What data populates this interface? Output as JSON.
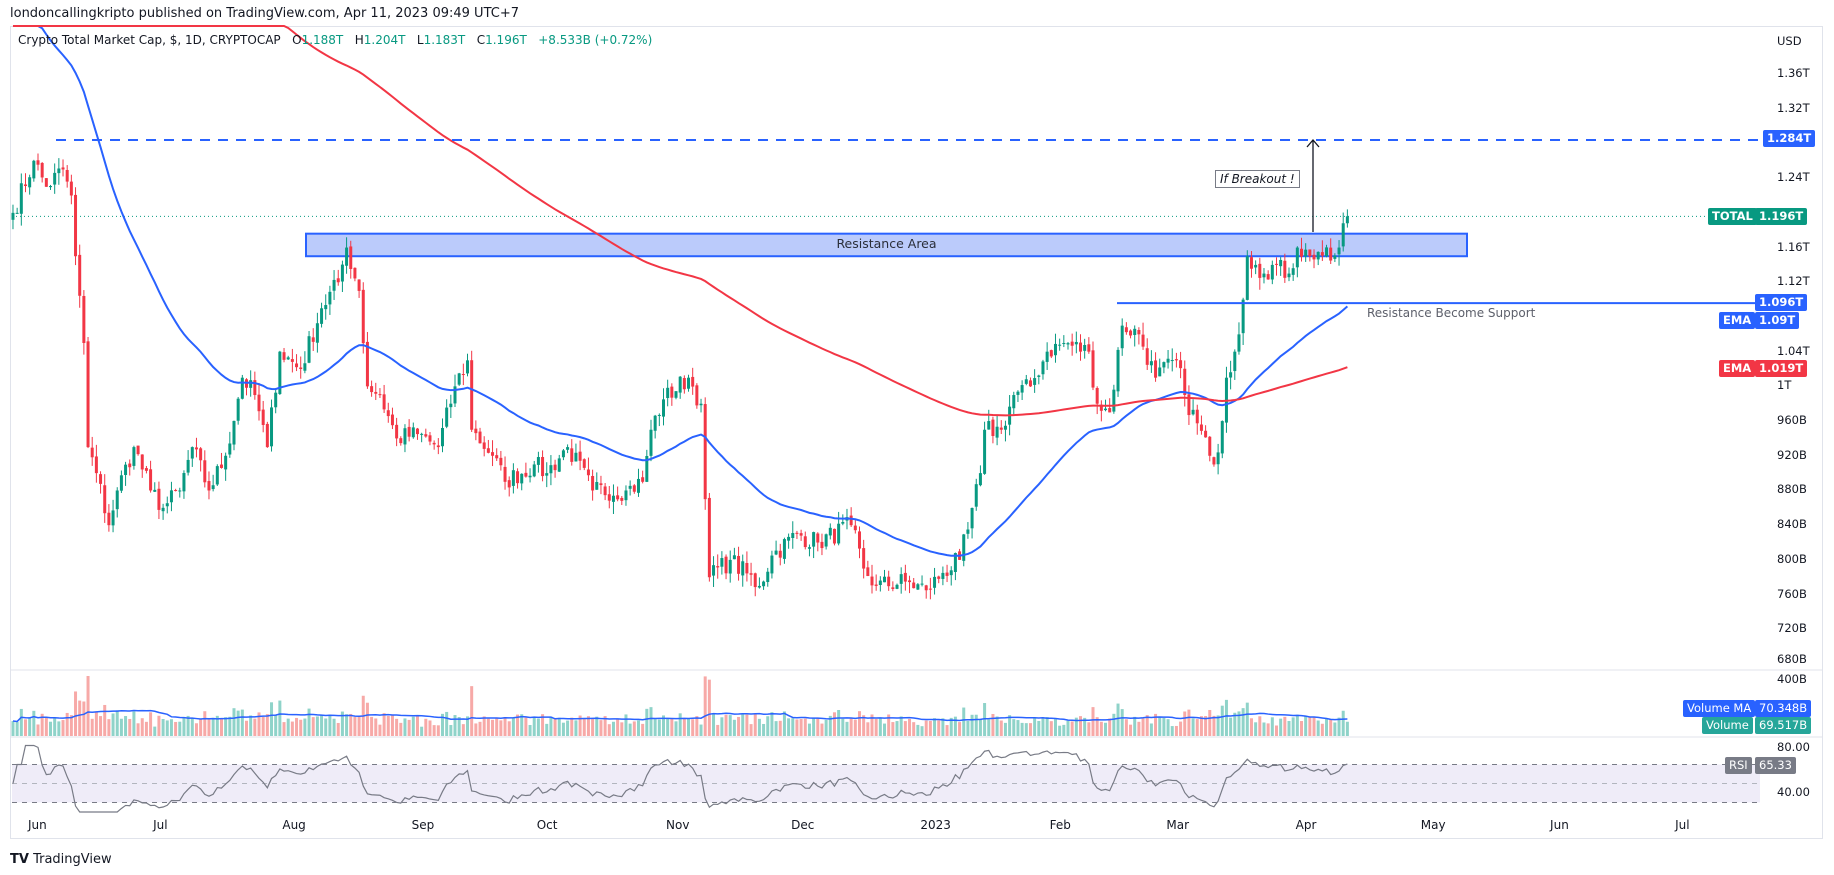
{
  "publisher": "londoncallingkripto published on TradingView.com, Apr 11, 2023 09:49 UTC+7",
  "legend": {
    "symbol": "Crypto Total Market Cap, $, 1D, CRYPTOCAP",
    "o_label": "O",
    "o": "1.188T",
    "h_label": "H",
    "h": "1.204T",
    "l_label": "L",
    "l": "1.183T",
    "c_label": "C",
    "c": "1.196T",
    "change": "+8.533B (+0.72%)"
  },
  "colors": {
    "up": "#089981",
    "down": "#f23645",
    "ema50": "#2962ff",
    "ema200": "#f23645",
    "drawing": "#2962ff",
    "rsi": "#787b86"
  },
  "price_axis": {
    "currency": "USD",
    "ticks": [
      "1.36T",
      "1.32T",
      "1.24T",
      "1.16T",
      "1.12T",
      "1.04T",
      "1T",
      "960B",
      "920B",
      "880B",
      "840B",
      "800B",
      "760B",
      "720B",
      "680B"
    ],
    "tick_values": [
      1360,
      1320,
      1240,
      1160,
      1120,
      1040,
      1000,
      960,
      920,
      880,
      840,
      800,
      760,
      720,
      680
    ]
  },
  "price_tags": {
    "target": "1.284T",
    "total_label": "TOTAL",
    "total": "1.196T",
    "support": "1.096T",
    "ema_label": "EMA",
    "ema50": "1.09T",
    "ema200": "1.019T"
  },
  "annotations": {
    "resistance_area": "Resistance Area",
    "breakout": "If Breakout !",
    "support_note": "Resistance Become Support"
  },
  "levels": {
    "target": 1284,
    "last": 1196,
    "support": 1096,
    "resistance_top": 1176,
    "resistance_bottom": 1150
  },
  "volume": {
    "axis_top": "400B",
    "ma_label": "Volume MA",
    "ma_value": "70.348B",
    "label": "Volume",
    "value": "69.517B"
  },
  "rsi": {
    "label": "RSI",
    "value": "65.33",
    "ticks": [
      "80.00",
      "40.00"
    ]
  },
  "time_axis": [
    "Jun",
    "Jul",
    "Aug",
    "Sep",
    "Oct",
    "Nov",
    "Dec",
    "2023",
    "Feb",
    "Mar",
    "Apr",
    "May",
    "Jun",
    "Jul"
  ],
  "time_axis_dates": [
    "2022-06-01",
    "2022-07-01",
    "2022-08-01",
    "2022-09-01",
    "2022-10-01",
    "2022-11-01",
    "2022-12-01",
    "2023-01-01",
    "2023-02-01",
    "2023-03-01",
    "2023-04-01",
    "2023-05-01",
    "2023-06-01",
    "2023-07-01"
  ],
  "footer": "TradingView",
  "chart_data": {
    "type": "candlestick",
    "unit": "billion USD",
    "title": "Crypto Total Market Cap, $, 1D, CRYPTOCAP",
    "ylim": [
      680,
      1380
    ],
    "ema_periods": [
      50,
      200
    ],
    "close_keypoints": [
      [
        "2022-05-26",
        1200
      ],
      [
        "2022-05-31",
        1260
      ],
      [
        "2022-06-03",
        1230
      ],
      [
        "2022-06-07",
        1250
      ],
      [
        "2022-06-09",
        1220
      ],
      [
        "2022-06-10",
        1150
      ],
      [
        "2022-06-12",
        1050
      ],
      [
        "2022-06-13",
        930
      ],
      [
        "2022-06-15",
        900
      ],
      [
        "2022-06-18",
        840
      ],
      [
        "2022-06-20",
        880
      ],
      [
        "2022-06-24",
        930
      ],
      [
        "2022-06-28",
        880
      ],
      [
        "2022-07-01",
        860
      ],
      [
        "2022-07-05",
        880
      ],
      [
        "2022-07-08",
        930
      ],
      [
        "2022-07-12",
        880
      ],
      [
        "2022-07-16",
        920
      ],
      [
        "2022-07-20",
        1010
      ],
      [
        "2022-07-23",
        990
      ],
      [
        "2022-07-26",
        930
      ],
      [
        "2022-07-29",
        1040
      ],
      [
        "2022-08-03",
        1020
      ],
      [
        "2022-08-08",
        1090
      ],
      [
        "2022-08-12",
        1120
      ],
      [
        "2022-08-14",
        1160
      ],
      [
        "2022-08-17",
        1110
      ],
      [
        "2022-08-19",
        1000
      ],
      [
        "2022-08-22",
        990
      ],
      [
        "2022-08-26",
        940
      ],
      [
        "2022-08-31",
        945
      ],
      [
        "2022-09-05",
        930
      ],
      [
        "2022-09-09",
        1000
      ],
      [
        "2022-09-12",
        1030
      ],
      [
        "2022-09-13",
        950
      ],
      [
        "2022-09-18",
        920
      ],
      [
        "2022-09-21",
        890
      ],
      [
        "2022-09-28",
        910
      ],
      [
        "2022-10-01",
        900
      ],
      [
        "2022-10-06",
        930
      ],
      [
        "2022-10-12",
        880
      ],
      [
        "2022-10-20",
        880
      ],
      [
        "2022-10-24",
        890
      ],
      [
        "2022-10-26",
        950
      ],
      [
        "2022-10-29",
        985
      ],
      [
        "2022-11-04",
        1010
      ],
      [
        "2022-11-07",
        980
      ],
      [
        "2022-11-08",
        870
      ],
      [
        "2022-11-09",
        780
      ],
      [
        "2022-11-14",
        800
      ],
      [
        "2022-11-21",
        770
      ],
      [
        "2022-11-24",
        805
      ],
      [
        "2022-11-30",
        830
      ],
      [
        "2022-12-05",
        820
      ],
      [
        "2022-12-13",
        840
      ],
      [
        "2022-12-16",
        790
      ],
      [
        "2022-12-19",
        770
      ],
      [
        "2022-12-26",
        775
      ],
      [
        "2022-12-31",
        765
      ],
      [
        "2023-01-04",
        785
      ],
      [
        "2023-01-08",
        800
      ],
      [
        "2023-01-10",
        835
      ],
      [
        "2023-01-13",
        900
      ],
      [
        "2023-01-14",
        950
      ],
      [
        "2023-01-18",
        950
      ],
      [
        "2023-01-21",
        990
      ],
      [
        "2023-01-25",
        1000
      ],
      [
        "2023-01-29",
        1040
      ],
      [
        "2023-02-02",
        1050
      ],
      [
        "2023-02-08",
        1040
      ],
      [
        "2023-02-10",
        980
      ],
      [
        "2023-02-13",
        970
      ],
      [
        "2023-02-16",
        1070
      ],
      [
        "2023-02-20",
        1060
      ],
      [
        "2023-02-24",
        1010
      ],
      [
        "2023-03-01",
        1030
      ],
      [
        "2023-03-03",
        990
      ],
      [
        "2023-03-09",
        920
      ],
      [
        "2023-03-10",
        910
      ],
      [
        "2023-03-12",
        960
      ],
      [
        "2023-03-13",
        1010
      ],
      [
        "2023-03-15",
        1040
      ],
      [
        "2023-03-17",
        1100
      ],
      [
        "2023-03-18",
        1150
      ],
      [
        "2023-03-20",
        1140
      ],
      [
        "2023-03-22",
        1130
      ],
      [
        "2023-03-24",
        1140
      ],
      [
        "2023-03-28",
        1130
      ],
      [
        "2023-03-30",
        1160
      ],
      [
        "2023-04-02",
        1150
      ],
      [
        "2023-04-04",
        1155
      ],
      [
        "2023-04-07",
        1145
      ],
      [
        "2023-04-09",
        1160
      ],
      [
        "2023-04-10",
        1188
      ],
      [
        "2023-04-11",
        1196
      ]
    ]
  }
}
